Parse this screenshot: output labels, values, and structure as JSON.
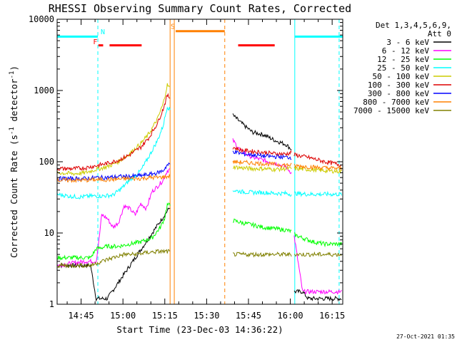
{
  "chart_data": {
    "type": "line",
    "title": "RHESSI Observing Summary Count Rates, Corrected",
    "xlabel": "Start Time (23-Dec-03 14:36:22)",
    "ylabel_main": "Corrected Count Rate (s",
    "ylabel_sup1": "-1",
    "ylabel_mid": " detector",
    "ylabel_sup2": "-1",
    "ylabel_end": ")",
    "x_unit": "minutes after 14:36:22",
    "xlim": [
      0,
      102.4
    ],
    "ylim": [
      1,
      10000
    ],
    "yscale": "log",
    "x_ticks": [
      {
        "value": 8.6,
        "label": "14:45"
      },
      {
        "value": 23.6,
        "label": "15:00"
      },
      {
        "value": 38.6,
        "label": "15:15"
      },
      {
        "value": 53.6,
        "label": "15:30"
      },
      {
        "value": 68.6,
        "label": "15:45"
      },
      {
        "value": 83.6,
        "label": "16:00"
      },
      {
        "value": 98.6,
        "label": "16:15"
      }
    ],
    "y_ticks": [
      {
        "value": 1,
        "label": "1"
      },
      {
        "value": 10,
        "label": "10"
      },
      {
        "value": 100,
        "label": "100"
      },
      {
        "value": 1000,
        "label": "1000"
      },
      {
        "value": 10000,
        "label": "10000"
      }
    ],
    "legend_header": [
      "Det 1,3,4,5,6,9,",
      "Att 0"
    ],
    "gaps": [
      [
        40.5,
        63.0
      ],
      [
        84.0,
        85.0
      ]
    ],
    "series": [
      {
        "name": "3 - 6 keV",
        "color": "#000000",
        "points": [
          [
            0,
            3.5
          ],
          [
            12,
            3.5
          ],
          [
            14,
            1.2
          ],
          [
            18,
            1.2
          ],
          [
            63,
            450
          ],
          [
            66,
            350
          ],
          [
            70,
            260
          ],
          [
            74,
            240
          ],
          [
            78,
            200
          ],
          [
            82,
            175
          ],
          [
            84,
            150
          ],
          [
            85,
            1.5
          ],
          [
            88,
            1.5
          ],
          [
            90,
            1.2
          ],
          [
            102,
            1.2
          ]
        ]
      },
      {
        "name": "6 - 12 keV",
        "color": "#ff00ff",
        "points": [
          [
            0,
            3.5
          ],
          [
            10,
            4
          ],
          [
            14,
            4
          ],
          [
            15,
            8
          ],
          [
            16,
            18
          ],
          [
            18,
            16
          ],
          [
            20,
            12
          ],
          [
            22,
            14
          ],
          [
            24,
            24
          ],
          [
            26,
            22
          ],
          [
            28,
            18
          ],
          [
            30,
            26
          ],
          [
            32,
            22
          ],
          [
            34,
            38
          ],
          [
            36,
            45
          ],
          [
            38,
            55
          ],
          [
            39.5,
            75
          ],
          [
            63,
            200
          ],
          [
            66,
            140
          ],
          [
            70,
            115
          ],
          [
            74,
            105
          ],
          [
            78,
            95
          ],
          [
            82,
            85
          ],
          [
            84,
            70
          ],
          [
            85,
            9
          ],
          [
            88,
            1.5
          ],
          [
            92,
            1.5
          ],
          [
            96,
            1.5
          ],
          [
            102,
            1.5
          ]
        ]
      },
      {
        "name": "12 - 25 keV",
        "color": "#00ff00",
        "points": [
          [
            0,
            4.5
          ],
          [
            12,
            4.5
          ],
          [
            14,
            6
          ],
          [
            18,
            6.5
          ],
          [
            22,
            6.5
          ],
          [
            26,
            7
          ],
          [
            30,
            7.5
          ],
          [
            34,
            8.5
          ],
          [
            37,
            12
          ],
          [
            38.5,
            16
          ],
          [
            39.5,
            25
          ],
          [
            63,
            15
          ],
          [
            66,
            14
          ],
          [
            70,
            13
          ],
          [
            74,
            12
          ],
          [
            78,
            11.5
          ],
          [
            82,
            11
          ],
          [
            84,
            10.5
          ],
          [
            85,
            9.5
          ],
          [
            88,
            8.5
          ],
          [
            92,
            7.5
          ],
          [
            96,
            7
          ],
          [
            102,
            7
          ]
        ]
      },
      {
        "name": "25 - 50 keV",
        "color": "#00ffff",
        "points": [
          [
            0,
            35
          ],
          [
            4,
            33
          ],
          [
            8,
            32
          ],
          [
            12,
            33
          ],
          [
            16,
            33
          ],
          [
            20,
            34
          ],
          [
            23,
            42
          ],
          [
            26,
            55
          ],
          [
            30,
            75
          ],
          [
            33,
            120
          ],
          [
            36,
            200
          ],
          [
            38,
            320
          ],
          [
            39.5,
            600
          ],
          [
            63,
            40
          ],
          [
            66,
            38
          ],
          [
            70,
            37
          ],
          [
            74,
            37
          ],
          [
            78,
            36
          ],
          [
            82,
            36
          ],
          [
            84,
            35
          ],
          [
            85,
            36
          ],
          [
            90,
            35
          ],
          [
            96,
            35
          ],
          [
            102,
            35
          ]
        ]
      },
      {
        "name": "50 - 100 keV",
        "color": "#cccc00",
        "points": [
          [
            0,
            70
          ],
          [
            6,
            68
          ],
          [
            10,
            70
          ],
          [
            14,
            78
          ],
          [
            18,
            85
          ],
          [
            22,
            100
          ],
          [
            26,
            130
          ],
          [
            30,
            180
          ],
          [
            33,
            250
          ],
          [
            36,
            400
          ],
          [
            38,
            650
          ],
          [
            39.5,
            1200
          ],
          [
            63,
            85
          ],
          [
            66,
            82
          ],
          [
            70,
            80
          ],
          [
            74,
            80
          ],
          [
            78,
            78
          ],
          [
            82,
            80
          ],
          [
            84,
            80
          ],
          [
            85,
            80
          ],
          [
            90,
            78
          ],
          [
            96,
            75
          ],
          [
            102,
            73
          ]
        ]
      },
      {
        "name": "100 - 300 keV",
        "color": "#dd0000",
        "points": [
          [
            0,
            80
          ],
          [
            6,
            80
          ],
          [
            10,
            82
          ],
          [
            14,
            88
          ],
          [
            18,
            95
          ],
          [
            22,
            105
          ],
          [
            26,
            125
          ],
          [
            30,
            160
          ],
          [
            33,
            220
          ],
          [
            36,
            350
          ],
          [
            38,
            550
          ],
          [
            39.5,
            850
          ],
          [
            63,
            160
          ],
          [
            66,
            145
          ],
          [
            70,
            140
          ],
          [
            74,
            135
          ],
          [
            78,
            130
          ],
          [
            82,
            128
          ],
          [
            84,
            135
          ],
          [
            85,
            125
          ],
          [
            90,
            115
          ],
          [
            96,
            100
          ],
          [
            102,
            90
          ]
        ]
      },
      {
        "name": "300 - 800 keV",
        "color": "#0000ff",
        "points": [
          [
            0,
            58
          ],
          [
            6,
            58
          ],
          [
            10,
            58
          ],
          [
            14,
            60
          ],
          [
            18,
            60
          ],
          [
            22,
            62
          ],
          [
            26,
            62
          ],
          [
            30,
            64
          ],
          [
            33,
            66
          ],
          [
            36,
            70
          ],
          [
            38,
            75
          ],
          [
            39.5,
            90
          ],
          [
            63,
            140
          ],
          [
            66,
            130
          ],
          [
            70,
            125
          ],
          [
            74,
            120
          ],
          [
            78,
            118
          ],
          [
            82,
            116
          ],
          [
            84,
            115
          ]
        ]
      },
      {
        "name": "800 - 7000 keV",
        "color": "#ff8000",
        "points": [
          [
            0,
            55
          ],
          [
            6,
            55
          ],
          [
            10,
            55
          ],
          [
            14,
            56
          ],
          [
            18,
            56
          ],
          [
            22,
            57
          ],
          [
            26,
            58
          ],
          [
            30,
            58
          ],
          [
            33,
            60
          ],
          [
            36,
            60
          ],
          [
            39.5,
            62
          ],
          [
            63,
            100
          ],
          [
            66,
            98
          ],
          [
            70,
            96
          ],
          [
            74,
            94
          ],
          [
            78,
            92
          ],
          [
            82,
            90
          ],
          [
            84,
            90
          ],
          [
            85,
            88
          ],
          [
            90,
            85
          ],
          [
            96,
            82
          ],
          [
            102,
            80
          ]
        ]
      },
      {
        "name": "7000 - 15000 keV",
        "color": "#808000",
        "points": [
          [
            0,
            3.5
          ],
          [
            12,
            3.5
          ],
          [
            16,
            4
          ],
          [
            20,
            4.5
          ],
          [
            24,
            5
          ],
          [
            28,
            5
          ],
          [
            32,
            5.3
          ],
          [
            36,
            5.5
          ],
          [
            39.5,
            5.5
          ],
          [
            63,
            5
          ],
          [
            66,
            5
          ],
          [
            70,
            5
          ],
          [
            74,
            5
          ],
          [
            78,
            5
          ],
          [
            82,
            5
          ],
          [
            84,
            5
          ],
          [
            85,
            5
          ],
          [
            90,
            5
          ],
          [
            96,
            5
          ],
          [
            102,
            5
          ]
        ]
      }
    ],
    "state_bars": [
      {
        "label": "N",
        "color": "#00ffff",
        "y": 5700,
        "segments": [
          [
            0,
            14.6
          ],
          [
            85.2,
            102.4
          ]
        ],
        "label_x": 15.6,
        "label_y": 6200
      },
      {
        "label": "F",
        "color": "#ff0000",
        "y": 4300,
        "segments": [
          [
            14.8,
            16.5
          ],
          [
            18.8,
            30.3
          ]
        ],
        "label_x": 12.9,
        "label_y": 4450
      },
      {
        "label": "S",
        "color": "#ff8000",
        "y": 6800,
        "segments": [
          [
            42.5,
            60.1
          ]
        ],
        "label_x": 40.7,
        "label_y": 7300
      },
      {
        "label": "",
        "color": "#ff0000",
        "y": 4300,
        "segments": [
          [
            64.9,
            78.0
          ]
        ]
      }
    ],
    "vertical_lines": [
      {
        "x": 0.0,
        "color": "#00ffff",
        "style": "solid"
      },
      {
        "x": 14.6,
        "color": "#00ffff",
        "style": "dashed"
      },
      {
        "x": 40.5,
        "color": "#ff8000",
        "style": "solid"
      },
      {
        "x": 42.0,
        "color": "#ff8000",
        "style": "solid"
      },
      {
        "x": 60.1,
        "color": "#ff8000",
        "style": "dashed"
      },
      {
        "x": 85.2,
        "color": "#00ffff",
        "style": "solid"
      },
      {
        "x": 101.1,
        "color": "#00ffff",
        "style": "dashed"
      }
    ],
    "timestamp": "27-Oct-2021 01:35"
  }
}
